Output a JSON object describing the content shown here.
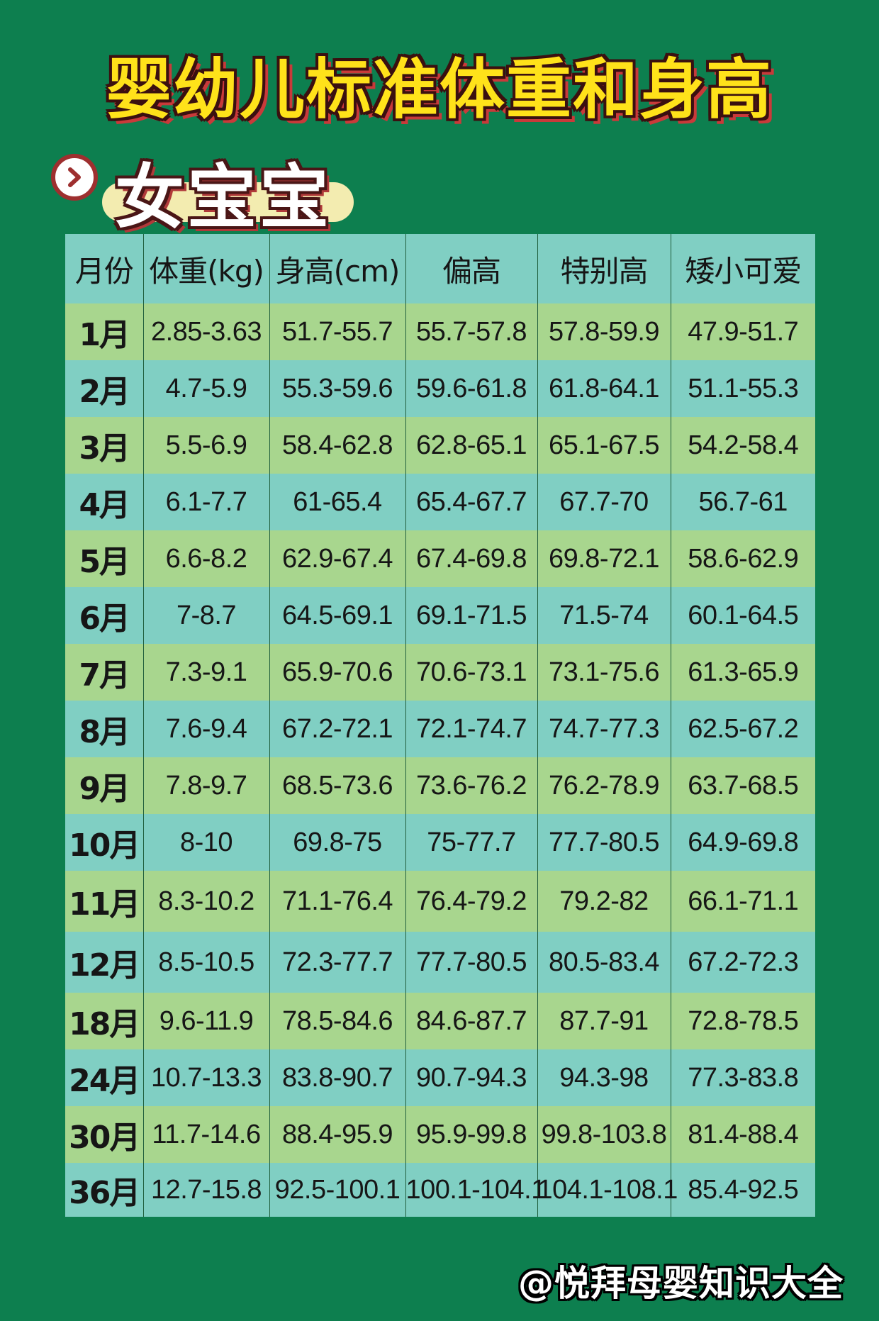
{
  "title": "婴幼儿标准体重和身高",
  "gender_label": "女宝宝",
  "icons": {
    "arrow": "chevron-right-icon"
  },
  "table": {
    "headers": [
      "月份",
      "体重(kg)",
      "身高(cm)",
      "偏高",
      "特别高",
      "矮小可爱"
    ],
    "rows": [
      [
        "1月",
        "2.85-3.63",
        "51.7-55.7",
        "55.7-57.8",
        "57.8-59.9",
        "47.9-51.7"
      ],
      [
        "2月",
        "4.7-5.9",
        "55.3-59.6",
        "59.6-61.8",
        "61.8-64.1",
        "51.1-55.3"
      ],
      [
        "3月",
        "5.5-6.9",
        "58.4-62.8",
        "62.8-65.1",
        "65.1-67.5",
        "54.2-58.4"
      ],
      [
        "4月",
        "6.1-7.7",
        "61-65.4",
        "65.4-67.7",
        "67.7-70",
        "56.7-61"
      ],
      [
        "5月",
        "6.6-8.2",
        "62.9-67.4",
        "67.4-69.8",
        "69.8-72.1",
        "58.6-62.9"
      ],
      [
        "6月",
        "7-8.7",
        "64.5-69.1",
        "69.1-71.5",
        "71.5-74",
        "60.1-64.5"
      ],
      [
        "7月",
        "7.3-9.1",
        "65.9-70.6",
        "70.6-73.1",
        "73.1-75.6",
        "61.3-65.9"
      ],
      [
        "8月",
        "7.6-9.4",
        "67.2-72.1",
        "72.1-74.7",
        "74.7-77.3",
        "62.5-67.2"
      ],
      [
        "9月",
        "7.8-9.7",
        "68.5-73.6",
        "73.6-76.2",
        "76.2-78.9",
        "63.7-68.5"
      ],
      [
        "10月",
        "8-10",
        "69.8-75",
        "75-77.7",
        "77.7-80.5",
        "64.9-69.8"
      ],
      [
        "11月",
        "8.3-10.2",
        "71.1-76.4",
        "76.4-79.2",
        "79.2-82",
        "66.1-71.1"
      ],
      [
        "12月",
        "8.5-10.5",
        "72.3-77.7",
        "77.7-80.5",
        "80.5-83.4",
        "67.2-72.3"
      ],
      [
        "18月",
        "9.6-11.9",
        "78.5-84.6",
        "84.6-87.7",
        "87.7-91",
        "72.8-78.5"
      ],
      [
        "24月",
        "10.7-13.3",
        "83.8-90.7",
        "90.7-94.3",
        "94.3-98",
        "77.3-83.8"
      ],
      [
        "30月",
        "11.7-14.6",
        "88.4-95.9",
        "95.9-99.8",
        "99.8-103.8",
        "81.4-88.4"
      ],
      [
        "36月",
        "12.7-15.8",
        "92.5-100.1",
        "100.1-104.1",
        "104.1-108.1",
        "85.4-92.5"
      ]
    ]
  },
  "colors": {
    "background": "#0d7f4f",
    "title_yellow": "#ffe21a",
    "row_green": "#a8d68e",
    "row_teal": "#80cfc3"
  },
  "watermark": "@悦拜母婴知识大全"
}
